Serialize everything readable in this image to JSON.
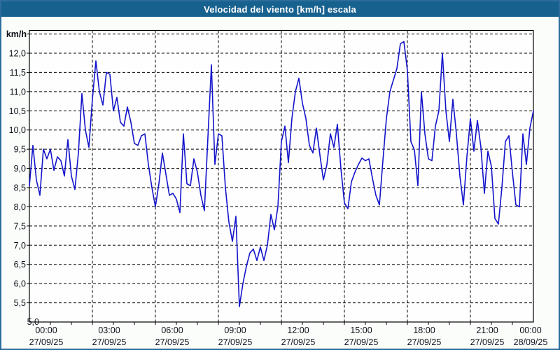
{
  "window": {
    "title": "Velocidad del viento [km/h] escala"
  },
  "colors": {
    "titlebar_bg": "#17618e",
    "titlebar_text": "#ffffff",
    "page_bg": "#fbfdfb",
    "page_border": "#2c6d9c",
    "plot_border": "#000000",
    "grid": "#000000",
    "line": "#1414cc",
    "label_text": "#10101a"
  },
  "chart": {
    "unit_label": "km/h",
    "y_tick_labels": [
      "12,0",
      "11,5",
      "11,0",
      "10,5",
      "10,0",
      "9,5",
      "9,0",
      "8,5",
      "8,0",
      "7,5",
      "7,0",
      "6,5",
      "6,0",
      "5,5"
    ],
    "y_bottom_label": "5,0",
    "x_ticks": [
      {
        "time": "00:00",
        "date": "27/09/25"
      },
      {
        "time": "03:00",
        "date": "27/09/25"
      },
      {
        "time": "06:00",
        "date": "27/09/25"
      },
      {
        "time": "09:00",
        "date": "27/09/25"
      },
      {
        "time": "12:00",
        "date": "27/09/25"
      },
      {
        "time": "15:00",
        "date": "27/09/25"
      },
      {
        "time": "18:00",
        "date": "27/09/25"
      },
      {
        "time": "21:00",
        "date": "27/09/25"
      },
      {
        "time": "00:00",
        "date": "28/09/25"
      }
    ]
  },
  "chart_data": {
    "type": "line",
    "title": "Velocidad del viento [km/h] escala",
    "ylabel": "km/h",
    "ylim": [
      5.0,
      12.5
    ],
    "y_tick_step": 0.5,
    "x_tick_labels": [
      "00:00",
      "03:00",
      "06:00",
      "09:00",
      "12:00",
      "15:00",
      "18:00",
      "21:00",
      "00:00"
    ],
    "x_start": "27/09/25 00:00",
    "x_end": "28/09/25 00:00",
    "x_interval_minutes": 10,
    "grid": "dashed both axes",
    "legend_position": "none",
    "line_color": "#1414cc",
    "values": [
      8.55,
      9.6,
      8.7,
      8.3,
      9.5,
      9.25,
      9.5,
      8.95,
      9.3,
      9.2,
      8.8,
      9.75,
      8.8,
      8.45,
      9.4,
      10.95,
      10.0,
      9.55,
      10.8,
      11.8,
      11.0,
      10.65,
      11.5,
      11.45,
      10.5,
      10.85,
      10.2,
      10.1,
      10.6,
      10.2,
      9.65,
      9.6,
      9.85,
      9.9,
      9.1,
      8.5,
      8.0,
      8.6,
      9.4,
      8.85,
      8.3,
      8.35,
      8.2,
      7.85,
      9.9,
      8.6,
      8.55,
      9.25,
      8.9,
      8.3,
      7.9,
      9.8,
      11.7,
      9.1,
      9.9,
      9.85,
      8.5,
      7.6,
      7.1,
      7.75,
      5.4,
      6.0,
      6.45,
      6.8,
      6.9,
      6.6,
      6.95,
      6.6,
      7.0,
      7.8,
      7.4,
      8.0,
      9.7,
      10.1,
      9.15,
      10.3,
      11.0,
      11.35,
      10.7,
      10.3,
      9.6,
      9.4,
      10.05,
      9.35,
      8.7,
      9.1,
      9.9,
      9.55,
      10.15,
      9.0,
      8.1,
      7.95,
      8.65,
      8.9,
      9.1,
      9.27,
      9.2,
      9.25,
      8.75,
      8.3,
      8.05,
      9.2,
      10.3,
      11.0,
      11.3,
      11.6,
      12.25,
      12.3,
      11.55,
      9.7,
      9.48,
      8.55,
      11.0,
      9.9,
      9.25,
      9.2,
      10.1,
      10.5,
      12.0,
      10.5,
      9.7,
      10.8,
      9.9,
      8.8,
      8.05,
      9.3,
      10.3,
      9.45,
      10.25,
      9.55,
      8.35,
      9.45,
      9.05,
      7.7,
      7.55,
      8.5,
      9.7,
      9.85,
      8.9,
      8.05,
      8.0,
      9.9,
      9.1,
      10.05,
      10.5
    ]
  }
}
